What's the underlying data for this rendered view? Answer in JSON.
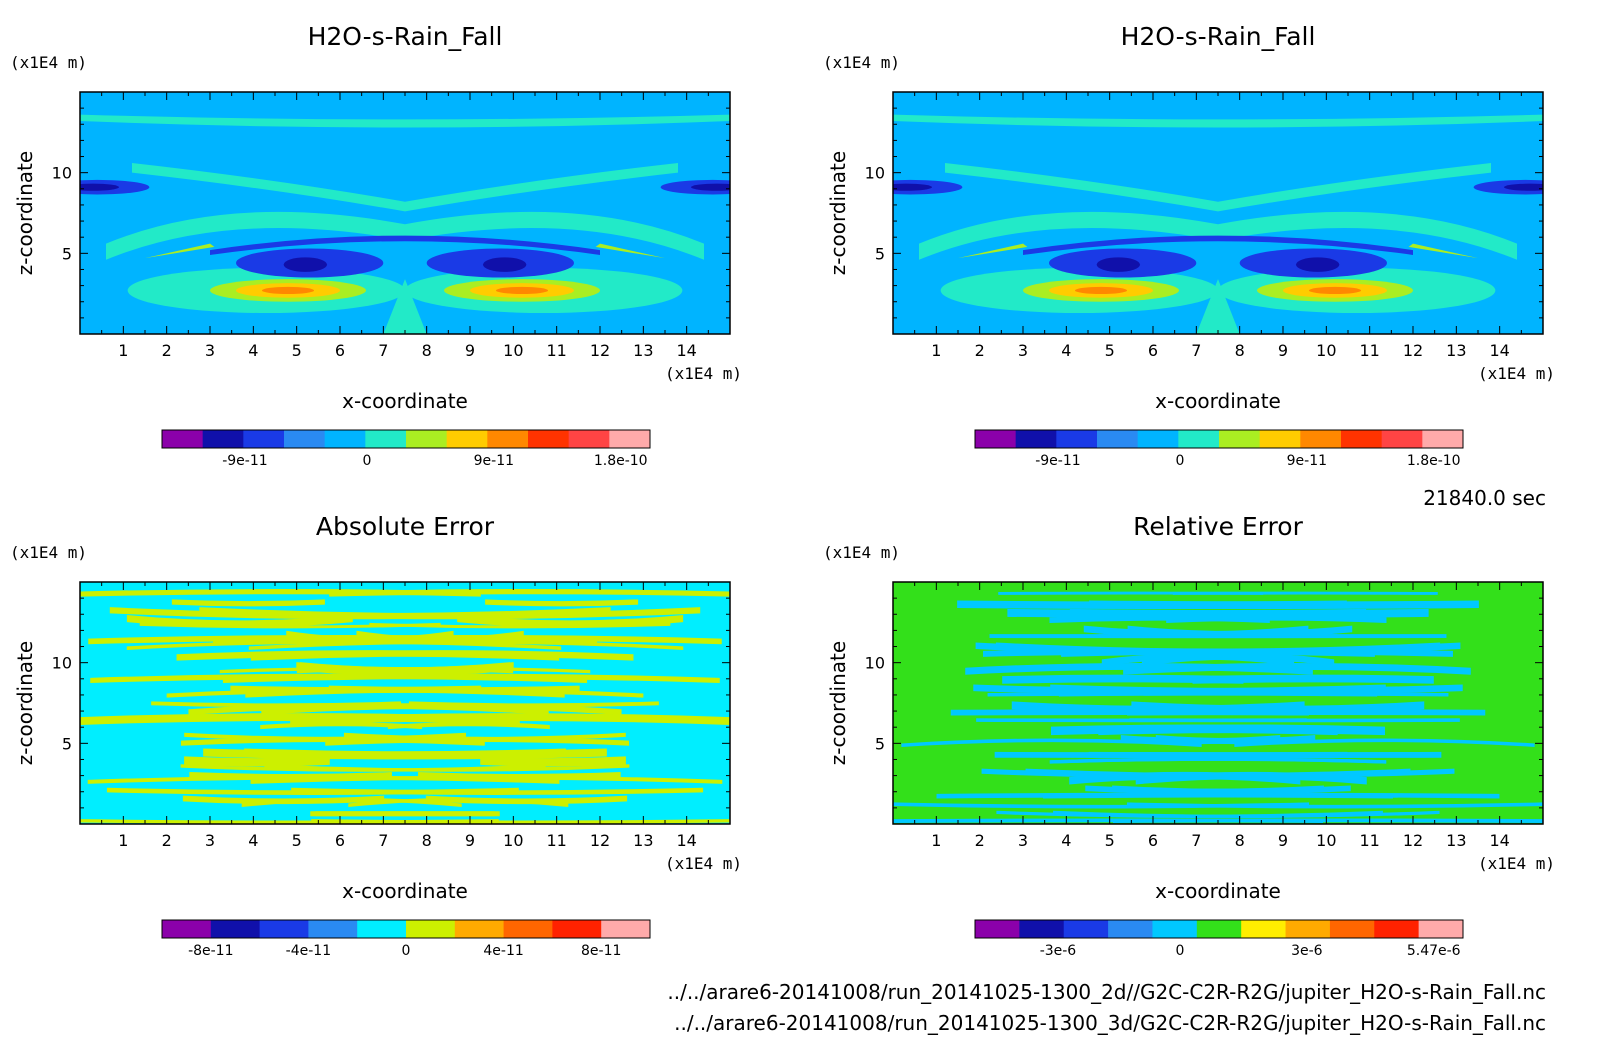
{
  "footer": {
    "time": "21840.0 sec",
    "file1": "../../arare6-20141008/run_20141025-1300_2d//G2C-C2R-R2G/jupiter_H2O-s-Rain_Fall.nc",
    "file2": "../../arare6-20141008/run_20141025-1300_3d/G2C-C2R-R2G/jupiter_H2O-s-Rain_Fall.nc"
  },
  "chart_data": [
    {
      "type": "heatmap",
      "title": "H2O-s-Rain_Fall",
      "xlabel": "x-coordinate",
      "ylabel": "z-coordinate",
      "x_unit": "(x1E4 m)",
      "y_unit": "(x1E4 m)",
      "xlim": [
        0,
        15
      ],
      "ylim": [
        0,
        15
      ],
      "xticks": [
        1,
        2,
        3,
        4,
        5,
        6,
        7,
        8,
        9,
        10,
        11,
        12,
        13,
        14
      ],
      "yticks": [
        5,
        10
      ],
      "pattern": "field",
      "colorbar": {
        "colors": [
          "#8b00aa",
          "#1010aa",
          "#1a3ae6",
          "#2a8af2",
          "#00b4ff",
          "#22eac8",
          "#aaee22",
          "#ffcc00",
          "#ff8800",
          "#ff3300",
          "#ff4444",
          "#ffaaaa"
        ],
        "labels": [
          "-9e-11",
          "0",
          "9e-11",
          "1.8e-10"
        ]
      }
    },
    {
      "type": "heatmap",
      "title": "H2O-s-Rain_Fall",
      "xlabel": "x-coordinate",
      "ylabel": "z-coordinate",
      "x_unit": "(x1E4 m)",
      "y_unit": "(x1E4 m)",
      "xlim": [
        0,
        15
      ],
      "ylim": [
        0,
        15
      ],
      "xticks": [
        1,
        2,
        3,
        4,
        5,
        6,
        7,
        8,
        9,
        10,
        11,
        12,
        13,
        14
      ],
      "yticks": [
        5,
        10
      ],
      "pattern": "field",
      "colorbar": {
        "colors": [
          "#8b00aa",
          "#1010aa",
          "#1a3ae6",
          "#2a8af2",
          "#00b4ff",
          "#22eac8",
          "#aaee22",
          "#ffcc00",
          "#ff8800",
          "#ff3300",
          "#ff4444",
          "#ffaaaa"
        ],
        "labels": [
          "-9e-11",
          "0",
          "9e-11",
          "1.8e-10"
        ]
      }
    },
    {
      "type": "heatmap",
      "title": "Absolute Error",
      "xlabel": "x-coordinate",
      "ylabel": "z-coordinate",
      "x_unit": "(x1E4 m)",
      "y_unit": "(x1E4 m)",
      "xlim": [
        0,
        15
      ],
      "ylim": [
        0,
        15
      ],
      "xticks": [
        1,
        2,
        3,
        4,
        5,
        6,
        7,
        8,
        9,
        10,
        11,
        12,
        13,
        14
      ],
      "yticks": [
        5,
        10
      ],
      "pattern": "abs",
      "colorbar": {
        "colors": [
          "#8b00aa",
          "#1010aa",
          "#1a3ae6",
          "#2a8af2",
          "#00eeff",
          "#ccf000",
          "#ffaa00",
          "#ff6600",
          "#ff2200",
          "#ffaaaa"
        ],
        "labels": [
          "-8e-11",
          "-4e-11",
          "0",
          "4e-11",
          "8e-11"
        ]
      }
    },
    {
      "type": "heatmap",
      "title": "Relative Error",
      "xlabel": "x-coordinate",
      "ylabel": "z-coordinate",
      "x_unit": "(x1E4 m)",
      "y_unit": "(x1E4 m)",
      "xlim": [
        0,
        15
      ],
      "ylim": [
        0,
        15
      ],
      "xticks": [
        1,
        2,
        3,
        4,
        5,
        6,
        7,
        8,
        9,
        10,
        11,
        12,
        13,
        14
      ],
      "yticks": [
        5,
        10
      ],
      "pattern": "rel",
      "colorbar": {
        "colors": [
          "#8b00aa",
          "#1010aa",
          "#1a3ae6",
          "#2a8af2",
          "#00c8ff",
          "#33e01a",
          "#ffee00",
          "#ffaa00",
          "#ff6600",
          "#ff2200",
          "#ffaaaa"
        ],
        "labels": [
          "-3e-6",
          "0",
          "3e-6",
          "5.47e-6"
        ]
      }
    }
  ]
}
